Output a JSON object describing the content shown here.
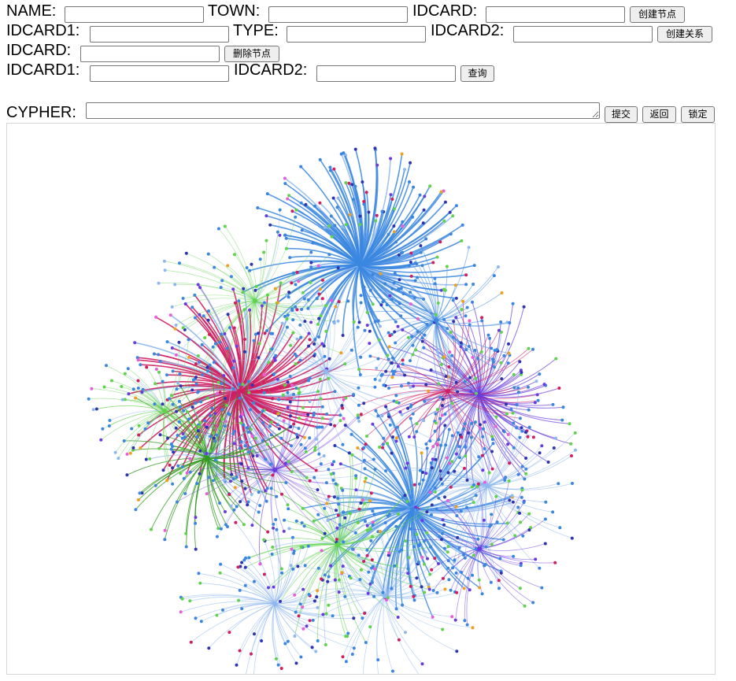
{
  "create_node": {
    "name_label": "NAME:",
    "name_value": "",
    "town_label": "TOWN:",
    "town_value": "",
    "idcard_label": "IDCARD:",
    "idcard_value": "",
    "button_label": "创建节点"
  },
  "create_relation": {
    "idcard1_label": "IDCARD1:",
    "idcard1_value": "",
    "type_label": "TYPE:",
    "type_value": "",
    "idcard2_label": "IDCARD2:",
    "idcard2_value": "",
    "button_label": "创建关系"
  },
  "delete_node": {
    "idcard_label": "IDCARD:",
    "idcard_value": "",
    "button_label": "删除节点"
  },
  "query": {
    "idcard1_label": "IDCARD1:",
    "idcard1_value": "",
    "idcard2_label": "IDCARD2:",
    "idcard2_value": "",
    "button_label": "查询"
  },
  "cypher": {
    "label": "CYPHER:",
    "value": "",
    "submit_label": "提交",
    "back_label": "返回",
    "lock_label": "锁定"
  },
  "graph": {
    "colors": [
      "#3b87e0",
      "#d11e62",
      "#5fd34c",
      "#6a3bde",
      "#2f9a1e",
      "#8fb8ee",
      "#e85dd8",
      "#f0a020",
      "#2f35b0"
    ]
  }
}
